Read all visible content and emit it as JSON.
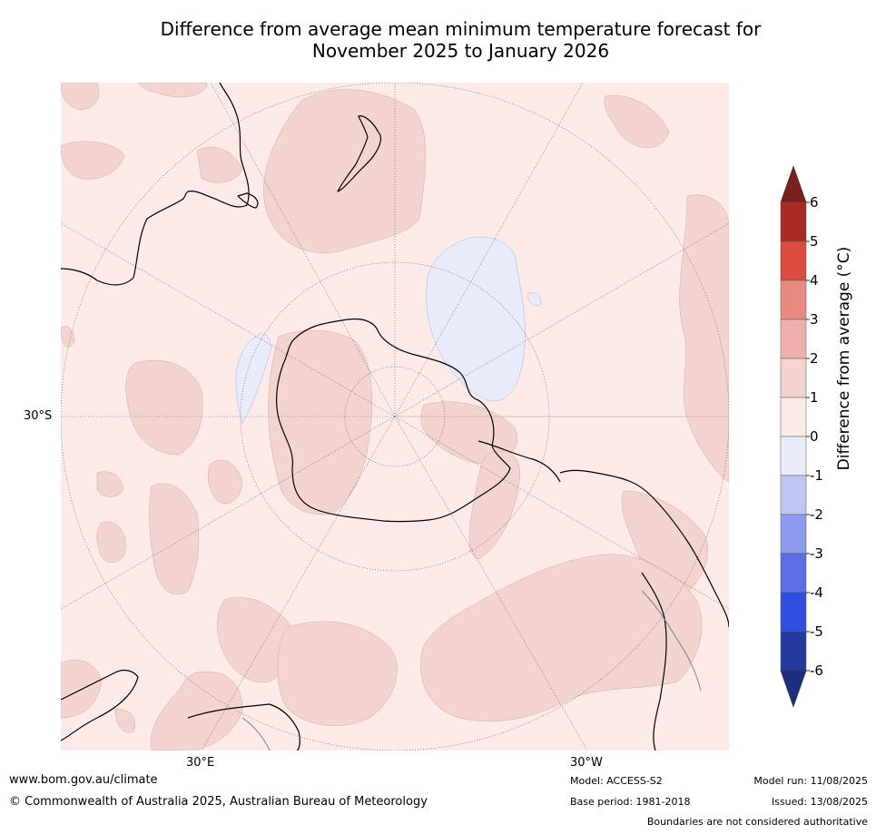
{
  "title": {
    "line1": "Difference from average mean minimum temperature forecast for",
    "line2": "November 2025 to January 2026"
  },
  "map": {
    "lat_label": "30°S",
    "lon_labels": {
      "east": "30°E",
      "west": "30°W"
    },
    "colors": {
      "ocean_0_1": "#fbeae8",
      "warm_1_2": "#f3d4d1",
      "cool_0_m1": "#e8ebfa",
      "coast": "#000000",
      "graticule": "#555555"
    }
  },
  "colorbar": {
    "label": "Difference from average (°C)",
    "ticks": [
      "6",
      "5",
      "4",
      "3",
      "2",
      "1",
      "0",
      "-1",
      "-2",
      "-3",
      "-4",
      "-5",
      "-6"
    ],
    "colors_top_to_bottom": [
      "#7a1f1a",
      "#a92a23",
      "#db4b40",
      "#e98a81",
      "#eeb0aa",
      "#f3d4d1",
      "#fbeae8",
      "#e8ebfa",
      "#bfc7f1",
      "#8c9bee",
      "#5a70e4",
      "#2f4ee0",
      "#253a9e",
      "#1f2d80"
    ]
  },
  "footer": {
    "url": "www.bom.gov.au/climate",
    "copyright": "© Commonwealth of Australia 2025, Australian Bureau of Meteorology",
    "model": "Model: ACCESS-S2",
    "base_period": "Base period: 1981-2018",
    "model_run": "Model run: 11/08/2025",
    "issued": "Issued: 13/08/2025",
    "disclaimer": "Boundaries are not considered authoritative"
  }
}
